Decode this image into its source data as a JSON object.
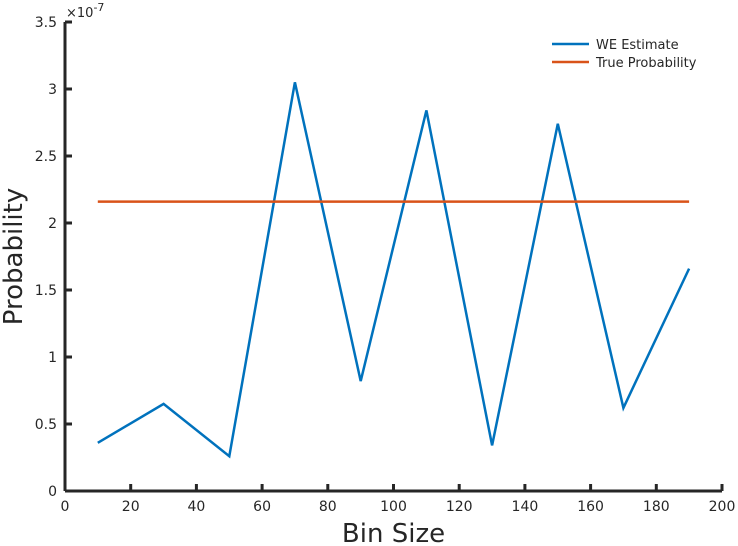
{
  "chart_data": {
    "type": "line",
    "xlabel": "Bin Size",
    "ylabel": "Probability",
    "xlim": [
      0,
      200
    ],
    "ylim": [
      0,
      3.5e-07
    ],
    "xticks": [
      0,
      20,
      40,
      60,
      80,
      100,
      120,
      140,
      160,
      180,
      200
    ],
    "yticks": [
      0,
      0.5,
      1,
      1.5,
      2,
      2.5,
      3,
      3.5
    ],
    "ytick_labels": [
      "0",
      "0.5",
      "1",
      "1.5",
      "2",
      "2.5",
      "3",
      "3.5"
    ],
    "y_exponent": {
      "base": "×10",
      "power": "-7"
    },
    "grid": false,
    "legend_position": "top-right",
    "series": [
      {
        "name": "WE Estimate",
        "color": "#0072BD",
        "x": [
          10,
          30,
          50,
          70,
          90,
          110,
          130,
          150,
          170,
          190
        ],
        "y": [
          3.6e-08,
          6.5e-08,
          2.6e-08,
          3.05e-07,
          8.2e-08,
          2.84e-07,
          3.4e-08,
          2.74e-07,
          6.2e-08,
          1.66e-07
        ]
      },
      {
        "name": "True Probability",
        "color": "#D95319",
        "x": [
          10,
          190
        ],
        "y": [
          2.16e-07,
          2.16e-07
        ]
      }
    ]
  }
}
